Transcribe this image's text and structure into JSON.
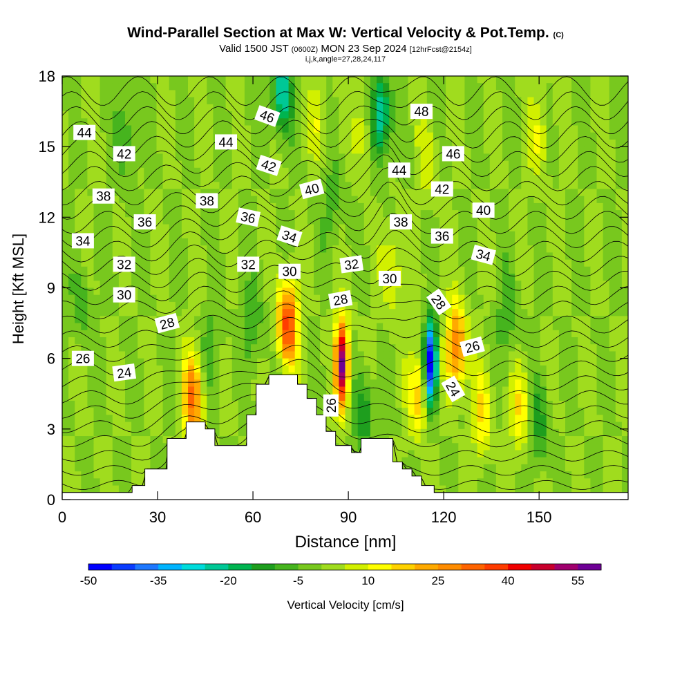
{
  "title": {
    "main": "Wind-Parallel Section at Max W: Vertical Velocity & Pot.Temp.",
    "copyright": "(C)",
    "valid_prefix": "Valid 1500 JST",
    "valid_utc": "(0600Z)",
    "valid_date": "MON 23 Sep 2024",
    "forecast": "[12hrFcst@2154z]",
    "indices": "i,j,k,angle=27,28,24,117"
  },
  "colors": {
    "scale": [
      "#0000ff",
      "#0a3cff",
      "#1e78ff",
      "#00b4ff",
      "#00dcdc",
      "#00c896",
      "#00b450",
      "#1e9e1e",
      "#46b41e",
      "#78c81e",
      "#a0dc1e",
      "#d2f000",
      "#ffff00",
      "#ffd200",
      "#ffaa00",
      "#ff8c00",
      "#ff6400",
      "#ff3c00",
      "#f00000",
      "#c8002d",
      "#a0006e",
      "#6e0096"
    ],
    "contour": "#000000",
    "terrain": "#ffffff"
  },
  "chart_data": {
    "type": "heatmap",
    "xlabel": "Distance [nm]",
    "ylabel": "Height [Kft MSL]",
    "xlim": [
      0,
      178
    ],
    "ylim": [
      0,
      18
    ],
    "x_ticks": [
      0,
      30,
      60,
      90,
      120,
      150
    ],
    "y_ticks": [
      0,
      3,
      6,
      9,
      12,
      15,
      18
    ],
    "colorbar": {
      "label": "Vertical Velocity [cm/s]",
      "min": -50,
      "max": 60,
      "step": 5,
      "tick_labels": [
        "-50",
        "-35",
        "-20",
        "-5",
        "10",
        "25",
        "40",
        "55"
      ]
    },
    "background_w": 0,
    "updrafts": [
      {
        "x": 41,
        "y": 4.3,
        "w": 30
      },
      {
        "x": 71,
        "y": 7.5,
        "w": 38
      },
      {
        "x": 88,
        "y": 5.8,
        "w": 58
      },
      {
        "x": 124,
        "y": 6.5,
        "w": 32
      },
      {
        "x": 104,
        "y": 9.7,
        "w": 12
      },
      {
        "x": 112,
        "y": 4.5,
        "w": 18
      },
      {
        "x": 132,
        "y": 3.6,
        "w": 15
      },
      {
        "x": 144,
        "y": 3.8,
        "w": 14
      },
      {
        "x": 150,
        "y": 15.5,
        "w": 10
      },
      {
        "x": 95,
        "y": 15.8,
        "w": 10
      },
      {
        "x": 80,
        "y": 16.2,
        "w": 8
      },
      {
        "x": 115,
        "y": 14.5,
        "w": 8
      }
    ],
    "downdrafts": [
      {
        "x": 116,
        "y": 5.8,
        "w": -52
      },
      {
        "x": 100,
        "y": 16.3,
        "w": -28
      },
      {
        "x": 69,
        "y": 17.3,
        "w": -25
      },
      {
        "x": 95,
        "y": 3.6,
        "w": -15
      },
      {
        "x": 60,
        "y": 7.5,
        "w": -10
      },
      {
        "x": 47,
        "y": 6.5,
        "w": -8
      },
      {
        "x": 140,
        "y": 7.8,
        "w": -10
      },
      {
        "x": 150,
        "y": 3.2,
        "w": -12
      },
      {
        "x": 6,
        "y": 8.2,
        "w": -8
      },
      {
        "x": 20,
        "y": 15.5,
        "w": -10
      },
      {
        "x": 85,
        "y": 12.5,
        "w": -8
      }
    ],
    "terrain_profile": [
      {
        "x": 0,
        "h": 0.3
      },
      {
        "x": 22,
        "h": 0.3
      },
      {
        "x": 22,
        "h": 0.6
      },
      {
        "x": 26,
        "h": 0.6
      },
      {
        "x": 26,
        "h": 1.3
      },
      {
        "x": 33,
        "h": 1.3
      },
      {
        "x": 33,
        "h": 2.6
      },
      {
        "x": 39,
        "h": 2.6
      },
      {
        "x": 39,
        "h": 3.3
      },
      {
        "x": 45,
        "h": 3.3
      },
      {
        "x": 45,
        "h": 3.0
      },
      {
        "x": 48,
        "h": 3.0
      },
      {
        "x": 48,
        "h": 2.3
      },
      {
        "x": 58,
        "h": 2.3
      },
      {
        "x": 58,
        "h": 3.6
      },
      {
        "x": 61,
        "h": 3.6
      },
      {
        "x": 61,
        "h": 4.9
      },
      {
        "x": 65,
        "h": 4.9
      },
      {
        "x": 65,
        "h": 5.3
      },
      {
        "x": 74,
        "h": 5.3
      },
      {
        "x": 74,
        "h": 4.9
      },
      {
        "x": 77,
        "h": 4.9
      },
      {
        "x": 77,
        "h": 4.3
      },
      {
        "x": 80,
        "h": 4.3
      },
      {
        "x": 80,
        "h": 3.6
      },
      {
        "x": 83,
        "h": 3.6
      },
      {
        "x": 83,
        "h": 2.9
      },
      {
        "x": 86,
        "h": 2.9
      },
      {
        "x": 86,
        "h": 2.3
      },
      {
        "x": 91,
        "h": 2.3
      },
      {
        "x": 91,
        "h": 2.0
      },
      {
        "x": 94,
        "h": 2.0
      },
      {
        "x": 94,
        "h": 2.6
      },
      {
        "x": 104,
        "h": 2.6
      },
      {
        "x": 104,
        "h": 1.6
      },
      {
        "x": 107,
        "h": 1.6
      },
      {
        "x": 107,
        "h": 1.3
      },
      {
        "x": 110,
        "h": 1.3
      },
      {
        "x": 110,
        "h": 1.0
      },
      {
        "x": 113,
        "h": 1.0
      },
      {
        "x": 113,
        "h": 0.6
      },
      {
        "x": 117,
        "h": 0.6
      },
      {
        "x": 117,
        "h": 0.3
      },
      {
        "x": 178,
        "h": 0.3
      }
    ],
    "theta_contours": {
      "min": 22,
      "max": 50,
      "step": 1,
      "labeled_every": 2
    },
    "theta_labels": [
      {
        "text": "44",
        "x": 7,
        "y": 15.6,
        "angle": 0
      },
      {
        "text": "42",
        "x": 19.5,
        "y": 14.7,
        "angle": 0
      },
      {
        "text": "38",
        "x": 13,
        "y": 12.9,
        "angle": 0
      },
      {
        "text": "36",
        "x": 26,
        "y": 11.8,
        "angle": 0
      },
      {
        "text": "34",
        "x": 6.5,
        "y": 11.0,
        "angle": 0
      },
      {
        "text": "32",
        "x": 19.5,
        "y": 10.0,
        "angle": 0
      },
      {
        "text": "30",
        "x": 19.5,
        "y": 8.7,
        "angle": 0
      },
      {
        "text": "28",
        "x": 33,
        "y": 7.5,
        "angle": -15
      },
      {
        "text": "26",
        "x": 6.5,
        "y": 6.0,
        "angle": 0
      },
      {
        "text": "24",
        "x": 19.5,
        "y": 5.4,
        "angle": -8
      },
      {
        "text": "46",
        "x": 64.5,
        "y": 16.3,
        "angle": 20
      },
      {
        "text": "44",
        "x": 51.5,
        "y": 15.2,
        "angle": 0
      },
      {
        "text": "42",
        "x": 65,
        "y": 14.2,
        "angle": 18
      },
      {
        "text": "40",
        "x": 78.5,
        "y": 13.2,
        "angle": -15
      },
      {
        "text": "38",
        "x": 45.5,
        "y": 12.7,
        "angle": 0
      },
      {
        "text": "36",
        "x": 58.5,
        "y": 12.0,
        "angle": 12
      },
      {
        "text": "34",
        "x": 71.5,
        "y": 11.2,
        "angle": 18
      },
      {
        "text": "32",
        "x": 58.5,
        "y": 10.0,
        "angle": 0
      },
      {
        "text": "30",
        "x": 71.5,
        "y": 9.7,
        "angle": 0
      },
      {
        "text": "28",
        "x": 87.5,
        "y": 8.5,
        "angle": -10
      },
      {
        "text": "32",
        "x": 91,
        "y": 10.0,
        "angle": -8
      },
      {
        "text": "26",
        "x": 84.5,
        "y": 4.0,
        "angle": -90
      },
      {
        "text": "48",
        "x": 113,
        "y": 16.5,
        "angle": 0
      },
      {
        "text": "46",
        "x": 123,
        "y": 14.7,
        "angle": 0
      },
      {
        "text": "44",
        "x": 106,
        "y": 14.0,
        "angle": 0
      },
      {
        "text": "42",
        "x": 119.5,
        "y": 13.2,
        "angle": 0
      },
      {
        "text": "40",
        "x": 132.5,
        "y": 12.3,
        "angle": 0
      },
      {
        "text": "38",
        "x": 106.5,
        "y": 11.8,
        "angle": 0
      },
      {
        "text": "36",
        "x": 119.5,
        "y": 11.2,
        "angle": 0
      },
      {
        "text": "34",
        "x": 132.5,
        "y": 10.4,
        "angle": 15
      },
      {
        "text": "30",
        "x": 103,
        "y": 9.4,
        "angle": 0
      },
      {
        "text": "28",
        "x": 118.5,
        "y": 8.4,
        "angle": 55
      },
      {
        "text": "26",
        "x": 129,
        "y": 6.5,
        "angle": -15
      },
      {
        "text": "24",
        "x": 123,
        "y": 4.7,
        "angle": 60
      }
    ]
  }
}
